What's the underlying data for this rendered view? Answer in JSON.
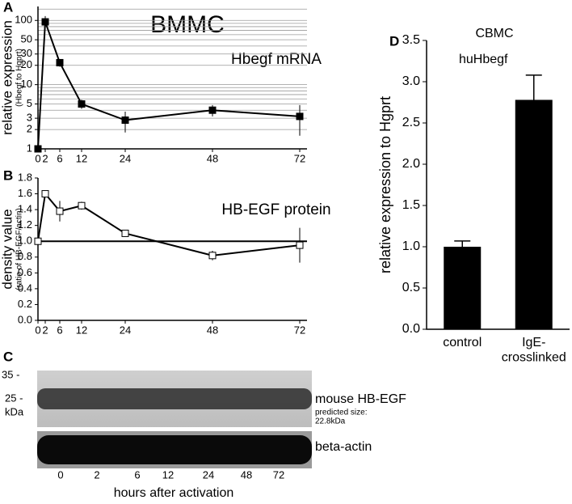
{
  "chart_data": [
    {
      "type": "line",
      "panel": "A",
      "title": "BMMC",
      "annotation": "Hbegf mRNA",
      "y_label": "relative expression",
      "y_sublabel": "(Hbegf to Hgprt)",
      "log_y": true,
      "grid": true,
      "marker": "square-filled",
      "color": "#000000",
      "x": [
        0,
        2,
        6,
        12,
        24,
        48,
        72
      ],
      "values": [
        1,
        95,
        22,
        5,
        2.8,
        4,
        3.2
      ],
      "errors": [
        0,
        22,
        3,
        0.8,
        1,
        0.8,
        1.6
      ],
      "xlim": [
        0,
        74
      ],
      "xticks": [
        0,
        2,
        6,
        12,
        24,
        48,
        72
      ],
      "ylim": [
        1,
        165
      ],
      "yticks": [
        1,
        2,
        3,
        5,
        10,
        20,
        30,
        50,
        100
      ],
      "y_minor_ticks": [
        4,
        6,
        7,
        8,
        9,
        40,
        60,
        70,
        80,
        90,
        150
      ]
    },
    {
      "type": "line",
      "panel": "B",
      "annotation": "HB-EGF protein",
      "y_label": "density value",
      "y_sublabel": "(ratio of HB-EGF/actin)",
      "log_y": false,
      "grid": false,
      "marker": "square-open",
      "color": "#000000",
      "reference_line": 1.0,
      "x": [
        0,
        2,
        6,
        12,
        24,
        48,
        72
      ],
      "values": [
        1.0,
        1.6,
        1.38,
        1.45,
        1.1,
        0.82,
        0.95
      ],
      "errors": [
        0,
        0,
        0.13,
        0.05,
        0,
        0.06,
        0.22
      ],
      "xlim": [
        0,
        74
      ],
      "xticks": [
        0,
        2,
        6,
        12,
        24,
        48,
        72
      ],
      "ylim": [
        0,
        1.8
      ],
      "yticks": [
        {
          "value": 0,
          "label": "0.0"
        },
        0.2,
        0.4,
        0.6,
        0.8,
        {
          "value": 1,
          "label": "1.0"
        },
        1.2,
        1.4,
        1.6,
        1.8
      ]
    },
    {
      "type": "bar",
      "panel": "D",
      "title": "CBMC",
      "annotation": "huHbegf",
      "y_label": "relative expression to Hgprt",
      "color": "#000000",
      "categories": [
        "control",
        "IgE-\ncrosslinked"
      ],
      "values": [
        1.0,
        2.78
      ],
      "errors": [
        0.07,
        0.3
      ],
      "ylim": [
        0,
        3.5
      ],
      "yticks": [
        {
          "value": 0,
          "label": "0.0"
        },
        0.5,
        {
          "value": 1,
          "label": "1.0"
        },
        1.5,
        {
          "value": 2,
          "label": "2.0"
        },
        2.5,
        {
          "value": 3,
          "label": "3.0"
        },
        3.5
      ]
    }
  ],
  "blot": {
    "panel": "C",
    "marker_35": "35 -",
    "marker_25": "25 -",
    "marker_unit": "kDa",
    "band_label": "mouse HB-EGF",
    "predicted": "predicted size:",
    "predicted_size": "22.8kDa",
    "control_label": "beta-actin",
    "lanes": [
      "0",
      "2",
      "6",
      "12",
      "24",
      "48",
      "72"
    ],
    "x_label": "hours after activation"
  }
}
